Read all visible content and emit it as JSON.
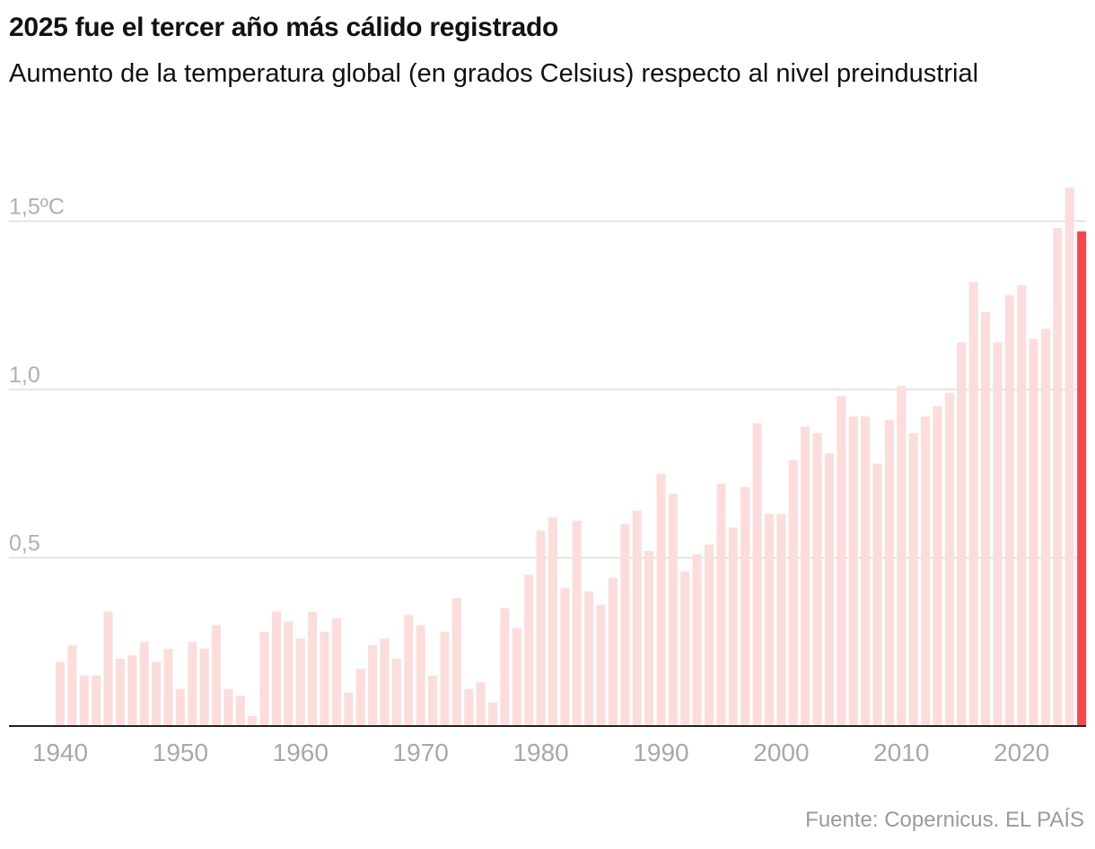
{
  "header": {
    "title": "2025 fue el tercer año más cálido registrado",
    "subtitle": "Aumento de la temperatura global (en grados Celsius) respecto al nivel preindustrial"
  },
  "source": "Fuente: Copernicus. EL PAÍS",
  "colors": {
    "bar": "#fddcdc",
    "highlight": "#f5474a",
    "grid": "#dddddd",
    "axis": "#222222"
  },
  "chart_data": {
    "type": "bar",
    "x": [
      1940,
      1941,
      1942,
      1943,
      1944,
      1945,
      1946,
      1947,
      1948,
      1949,
      1950,
      1951,
      1952,
      1953,
      1954,
      1955,
      1956,
      1957,
      1958,
      1959,
      1960,
      1961,
      1962,
      1963,
      1964,
      1965,
      1966,
      1967,
      1968,
      1969,
      1970,
      1971,
      1972,
      1973,
      1974,
      1975,
      1976,
      1977,
      1978,
      1979,
      1980,
      1981,
      1982,
      1983,
      1984,
      1985,
      1986,
      1987,
      1988,
      1989,
      1990,
      1991,
      1992,
      1993,
      1994,
      1995,
      1996,
      1997,
      1998,
      1999,
      2000,
      2001,
      2002,
      2003,
      2004,
      2005,
      2006,
      2007,
      2008,
      2009,
      2010,
      2011,
      2012,
      2013,
      2014,
      2015,
      2016,
      2017,
      2018,
      2019,
      2020,
      2021,
      2022,
      2023,
      2024,
      2025
    ],
    "values": [
      0.19,
      0.24,
      0.15,
      0.15,
      0.34,
      0.2,
      0.21,
      0.25,
      0.19,
      0.23,
      0.11,
      0.25,
      0.23,
      0.3,
      0.11,
      0.09,
      0.03,
      0.28,
      0.34,
      0.31,
      0.26,
      0.34,
      0.28,
      0.32,
      0.1,
      0.17,
      0.24,
      0.26,
      0.2,
      0.33,
      0.3,
      0.15,
      0.28,
      0.38,
      0.11,
      0.13,
      0.07,
      0.35,
      0.29,
      0.45,
      0.58,
      0.62,
      0.41,
      0.61,
      0.4,
      0.36,
      0.44,
      0.6,
      0.64,
      0.52,
      0.75,
      0.69,
      0.46,
      0.51,
      0.54,
      0.72,
      0.59,
      0.71,
      0.9,
      0.63,
      0.63,
      0.79,
      0.89,
      0.87,
      0.81,
      0.98,
      0.92,
      0.92,
      0.78,
      0.91,
      1.01,
      0.87,
      0.92,
      0.95,
      0.99,
      1.14,
      1.32,
      1.23,
      1.14,
      1.28,
      1.31,
      1.15,
      1.18,
      1.48,
      1.6,
      1.47
    ],
    "highlight_x": 2025,
    "yticks": [
      {
        "value": 0.5,
        "label": "0,5"
      },
      {
        "value": 1.0,
        "label": "1,0"
      },
      {
        "value": 1.5,
        "label": "1,5ºC"
      }
    ],
    "xticks": [
      1940,
      1950,
      1960,
      1970,
      1980,
      1990,
      2000,
      2010,
      2020
    ],
    "ylim": [
      0,
      1.6
    ],
    "grid": true,
    "legend": "none"
  }
}
